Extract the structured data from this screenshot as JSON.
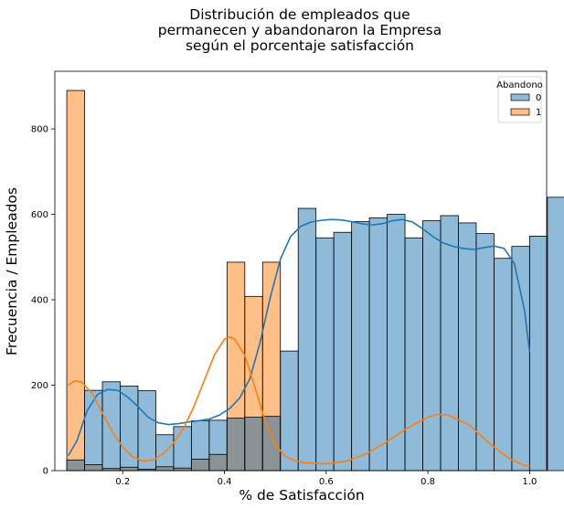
{
  "chart_data": {
    "type": "histogram",
    "title_lines": [
      "Distribución de empleados que",
      "permanecen y abandonaron la Empresa",
      "según el porcentaje satisfacción"
    ],
    "xlabel": "% de Satisfacción",
    "ylabel": "Frecuencia / Empleados",
    "xlim": [
      0.0665,
      1.0335
    ],
    "ylim": [
      0,
      935
    ],
    "x_ticks": [
      0.2,
      0.4,
      0.6,
      0.8,
      1.0
    ],
    "x_tick_labels": [
      "0.2",
      "0.4",
      "0.6",
      "0.8",
      "1.0"
    ],
    "y_ticks": [
      0,
      200,
      400,
      600,
      800
    ],
    "y_tick_labels": [
      "0",
      "200",
      "400",
      "600",
      "800"
    ],
    "grid": false,
    "legend": {
      "title": "Abandono",
      "placement": "top-right"
    },
    "bin_start": 0.09,
    "bin_width": 0.035,
    "series": [
      {
        "name": "0",
        "color": "#1f77b4",
        "values": [
          25,
          188,
          208,
          198,
          187,
          84,
          103,
          117,
          118,
          123,
          125,
          127,
          280,
          614,
          545,
          558,
          583,
          592,
          600,
          545,
          585,
          597,
          580,
          555,
          497,
          525,
          549,
          640
        ],
        "kde": [
          [
            0.093,
            35
          ],
          [
            0.11,
            70
          ],
          [
            0.13,
            140
          ],
          [
            0.15,
            178
          ],
          [
            0.17,
            190
          ],
          [
            0.19,
            188
          ],
          [
            0.21,
            172
          ],
          [
            0.23,
            150
          ],
          [
            0.25,
            125
          ],
          [
            0.27,
            112
          ],
          [
            0.29,
            108
          ],
          [
            0.31,
            110
          ],
          [
            0.33,
            114
          ],
          [
            0.35,
            117
          ],
          [
            0.37,
            121
          ],
          [
            0.39,
            130
          ],
          [
            0.41,
            145
          ],
          [
            0.43,
            170
          ],
          [
            0.45,
            215
          ],
          [
            0.47,
            300
          ],
          [
            0.49,
            405
          ],
          [
            0.51,
            495
          ],
          [
            0.53,
            548
          ],
          [
            0.55,
            572
          ],
          [
            0.57,
            582
          ],
          [
            0.59,
            586
          ],
          [
            0.61,
            588
          ],
          [
            0.63,
            587
          ],
          [
            0.65,
            583
          ],
          [
            0.67,
            578
          ],
          [
            0.69,
            575
          ],
          [
            0.71,
            578
          ],
          [
            0.73,
            585
          ],
          [
            0.75,
            588
          ],
          [
            0.77,
            582
          ],
          [
            0.79,
            566
          ],
          [
            0.81,
            548
          ],
          [
            0.83,
            533
          ],
          [
            0.85,
            525
          ],
          [
            0.87,
            520
          ],
          [
            0.89,
            518
          ],
          [
            0.91,
            522
          ],
          [
            0.93,
            526
          ],
          [
            0.95,
            520
          ],
          [
            0.97,
            485
          ],
          [
            0.99,
            375
          ],
          [
            1.0,
            278
          ]
        ]
      },
      {
        "name": "1",
        "color": "#ff7f0e",
        "values": [
          890,
          14,
          5,
          8,
          3,
          9,
          6,
          27,
          38,
          488,
          408,
          488,
          0,
          0,
          0,
          0,
          0,
          0,
          0,
          0,
          0,
          0,
          0,
          0,
          0,
          0,
          0,
          0
        ],
        "kde": [
          [
            0.093,
            200
          ],
          [
            0.105,
            210
          ],
          [
            0.12,
            207
          ],
          [
            0.14,
            180
          ],
          [
            0.16,
            135
          ],
          [
            0.18,
            90
          ],
          [
            0.2,
            55
          ],
          [
            0.22,
            32
          ],
          [
            0.24,
            22
          ],
          [
            0.26,
            25
          ],
          [
            0.28,
            40
          ],
          [
            0.3,
            65
          ],
          [
            0.32,
            100
          ],
          [
            0.34,
            150
          ],
          [
            0.36,
            210
          ],
          [
            0.38,
            270
          ],
          [
            0.4,
            308
          ],
          [
            0.41,
            313
          ],
          [
            0.42,
            308
          ],
          [
            0.44,
            270
          ],
          [
            0.46,
            195
          ],
          [
            0.48,
            115
          ],
          [
            0.5,
            60
          ],
          [
            0.52,
            33
          ],
          [
            0.54,
            22
          ],
          [
            0.56,
            18
          ],
          [
            0.6,
            16
          ],
          [
            0.64,
            22
          ],
          [
            0.68,
            40
          ],
          [
            0.72,
            68
          ],
          [
            0.76,
            100
          ],
          [
            0.8,
            125
          ],
          [
            0.82,
            132
          ],
          [
            0.84,
            130
          ],
          [
            0.88,
            108
          ],
          [
            0.92,
            65
          ],
          [
            0.96,
            28
          ],
          [
            0.99,
            12
          ],
          [
            1.0,
            10
          ]
        ]
      }
    ],
    "overlap_color": "#8a9396"
  }
}
